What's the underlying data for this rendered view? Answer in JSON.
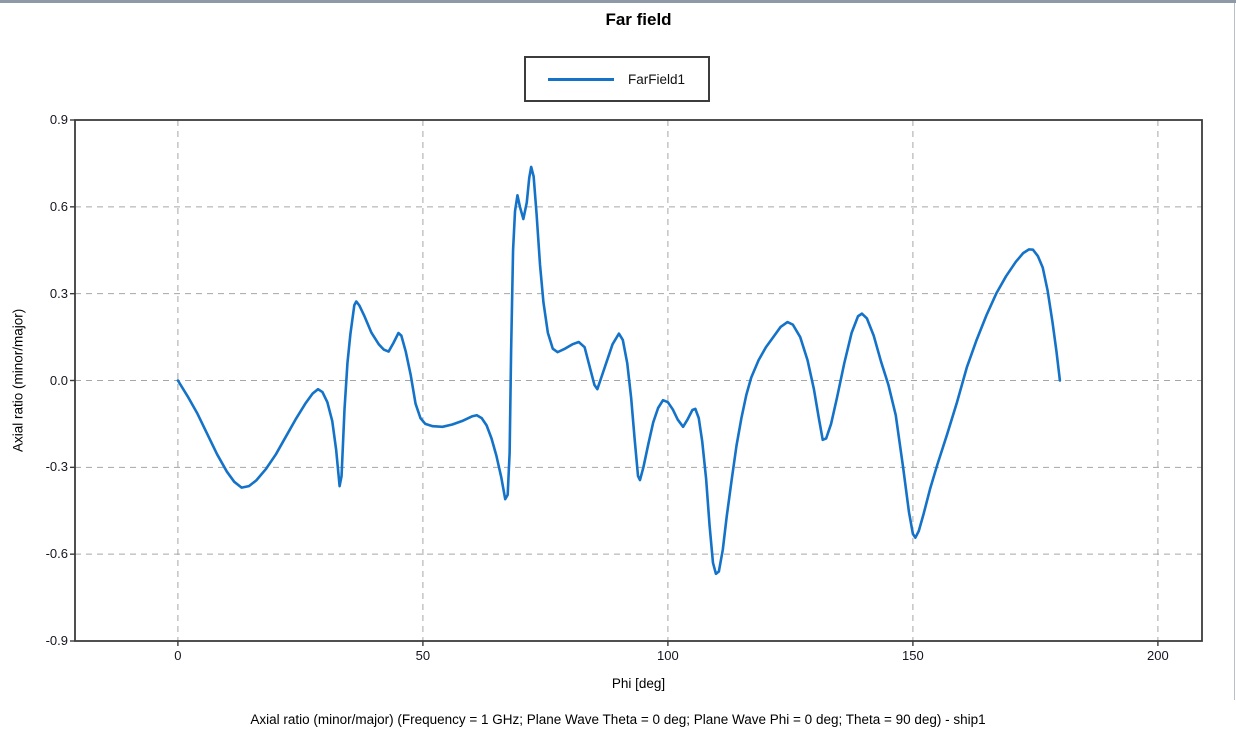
{
  "window": {
    "top_strip_color": "#8e99a7"
  },
  "chart_data": {
    "type": "line",
    "title": "Far field",
    "xlabel": "Phi [deg]",
    "ylabel": "Axial ratio (minor/major)",
    "caption": "Axial ratio (minor/major) (Frequency = 1 GHz; Plane Wave Theta = 0 deg; Plane Wave Phi = 0 deg; Theta = 90 deg) - ship1",
    "x_range": [
      -21,
      209
    ],
    "y_range": [
      -0.9,
      0.9
    ],
    "x_ticks": [
      0,
      50,
      100,
      150,
      200
    ],
    "y_ticks": [
      0.9,
      0.6,
      0.3,
      0.0,
      -0.3,
      -0.6,
      -0.9
    ],
    "grid": true,
    "legend": {
      "position": "top-center",
      "entries": [
        {
          "label": "FarField1",
          "color": "#1473c8"
        }
      ]
    },
    "series": [
      {
        "name": "FarField1",
        "color": "#1473c8",
        "points": [
          [
            0,
            0.0
          ],
          [
            2,
            -0.055
          ],
          [
            4,
            -0.115
          ],
          [
            6,
            -0.185
          ],
          [
            8,
            -0.255
          ],
          [
            10,
            -0.315
          ],
          [
            11.5,
            -0.35
          ],
          [
            13,
            -0.37
          ],
          [
            14.5,
            -0.365
          ],
          [
            16,
            -0.345
          ],
          [
            18,
            -0.305
          ],
          [
            20,
            -0.255
          ],
          [
            22,
            -0.195
          ],
          [
            24,
            -0.135
          ],
          [
            26,
            -0.08
          ],
          [
            27.5,
            -0.045
          ],
          [
            28.6,
            -0.03
          ],
          [
            29.5,
            -0.04
          ],
          [
            30.5,
            -0.075
          ],
          [
            31.5,
            -0.14
          ],
          [
            32.3,
            -0.24
          ],
          [
            33,
            -0.365
          ],
          [
            33.4,
            -0.33
          ],
          [
            34,
            -0.1
          ],
          [
            34.6,
            0.06
          ],
          [
            35.2,
            0.16
          ],
          [
            36,
            0.26
          ],
          [
            36.4,
            0.273
          ],
          [
            37,
            0.26
          ],
          [
            38,
            0.225
          ],
          [
            39.5,
            0.165
          ],
          [
            41,
            0.125
          ],
          [
            42,
            0.107
          ],
          [
            43,
            0.1
          ],
          [
            44,
            0.13
          ],
          [
            45,
            0.164
          ],
          [
            45.6,
            0.155
          ],
          [
            46.5,
            0.1
          ],
          [
            47.5,
            0.02
          ],
          [
            48.5,
            -0.08
          ],
          [
            49.5,
            -0.13
          ],
          [
            50.5,
            -0.15
          ],
          [
            52,
            -0.158
          ],
          [
            54,
            -0.16
          ],
          [
            56,
            -0.152
          ],
          [
            58,
            -0.14
          ],
          [
            60,
            -0.124
          ],
          [
            61,
            -0.12
          ],
          [
            62,
            -0.13
          ],
          [
            63,
            -0.155
          ],
          [
            64,
            -0.2
          ],
          [
            65,
            -0.26
          ],
          [
            66,
            -0.335
          ],
          [
            66.8,
            -0.41
          ],
          [
            67.3,
            -0.395
          ],
          [
            67.7,
            -0.25
          ],
          [
            68,
            0.1
          ],
          [
            68.4,
            0.45
          ],
          [
            68.8,
            0.585
          ],
          [
            69.3,
            0.64
          ],
          [
            69.8,
            0.6
          ],
          [
            70.5,
            0.558
          ],
          [
            71.2,
            0.615
          ],
          [
            71.7,
            0.7
          ],
          [
            72.1,
            0.738
          ],
          [
            72.6,
            0.705
          ],
          [
            73.2,
            0.575
          ],
          [
            73.9,
            0.4
          ],
          [
            74.6,
            0.27
          ],
          [
            75.5,
            0.165
          ],
          [
            76.5,
            0.11
          ],
          [
            77.5,
            0.098
          ],
          [
            79,
            0.11
          ],
          [
            80.5,
            0.125
          ],
          [
            81.8,
            0.133
          ],
          [
            83,
            0.115
          ],
          [
            84,
            0.05
          ],
          [
            85,
            -0.015
          ],
          [
            85.6,
            -0.03
          ],
          [
            86.4,
            0.01
          ],
          [
            87.5,
            0.065
          ],
          [
            88.7,
            0.125
          ],
          [
            90,
            0.162
          ],
          [
            90.8,
            0.14
          ],
          [
            91.7,
            0.06
          ],
          [
            92.5,
            -0.06
          ],
          [
            93.2,
            -0.2
          ],
          [
            93.9,
            -0.33
          ],
          [
            94.3,
            -0.344
          ],
          [
            95,
            -0.3
          ],
          [
            96,
            -0.22
          ],
          [
            97,
            -0.145
          ],
          [
            98,
            -0.095
          ],
          [
            99,
            -0.068
          ],
          [
            100,
            -0.075
          ],
          [
            101,
            -0.1
          ],
          [
            102,
            -0.135
          ],
          [
            103.1,
            -0.16
          ],
          [
            104,
            -0.135
          ],
          [
            105,
            -0.102
          ],
          [
            105.6,
            -0.098
          ],
          [
            106.3,
            -0.13
          ],
          [
            107,
            -0.21
          ],
          [
            107.8,
            -0.34
          ],
          [
            108.5,
            -0.5
          ],
          [
            109.2,
            -0.63
          ],
          [
            109.8,
            -0.668
          ],
          [
            110.4,
            -0.66
          ],
          [
            111.2,
            -0.585
          ],
          [
            112,
            -0.47
          ],
          [
            113,
            -0.345
          ],
          [
            114,
            -0.225
          ],
          [
            115,
            -0.13
          ],
          [
            116,
            -0.05
          ],
          [
            117,
            0.01
          ],
          [
            118.5,
            0.07
          ],
          [
            120,
            0.115
          ],
          [
            121.5,
            0.15
          ],
          [
            123,
            0.185
          ],
          [
            124.4,
            0.202
          ],
          [
            125.5,
            0.193
          ],
          [
            127,
            0.15
          ],
          [
            128.5,
            0.07
          ],
          [
            129.8,
            -0.03
          ],
          [
            130.8,
            -0.13
          ],
          [
            131.6,
            -0.205
          ],
          [
            132.3,
            -0.2
          ],
          [
            133.3,
            -0.15
          ],
          [
            134.5,
            -0.06
          ],
          [
            136,
            0.06
          ],
          [
            137.5,
            0.165
          ],
          [
            138.8,
            0.222
          ],
          [
            139.6,
            0.231
          ],
          [
            140.6,
            0.215
          ],
          [
            142,
            0.155
          ],
          [
            143.5,
            0.065
          ],
          [
            145,
            -0.015
          ],
          [
            146.5,
            -0.12
          ],
          [
            148,
            -0.3
          ],
          [
            149.2,
            -0.455
          ],
          [
            150,
            -0.53
          ],
          [
            150.5,
            -0.543
          ],
          [
            151.2,
            -0.52
          ],
          [
            152.2,
            -0.46
          ],
          [
            153.5,
            -0.375
          ],
          [
            155,
            -0.29
          ],
          [
            157,
            -0.185
          ],
          [
            159,
            -0.075
          ],
          [
            161,
            0.045
          ],
          [
            163,
            0.14
          ],
          [
            165,
            0.225
          ],
          [
            167,
            0.3
          ],
          [
            169,
            0.36
          ],
          [
            171,
            0.41
          ],
          [
            172.5,
            0.44
          ],
          [
            173.7,
            0.453
          ],
          [
            174.5,
            0.452
          ],
          [
            175.5,
            0.43
          ],
          [
            176.5,
            0.39
          ],
          [
            177.5,
            0.31
          ],
          [
            178.5,
            0.2
          ],
          [
            179.3,
            0.1
          ],
          [
            180,
            0.0
          ]
        ]
      }
    ],
    "frame_color": "#3c3c3c",
    "grid_color": "#a6a6a6"
  }
}
